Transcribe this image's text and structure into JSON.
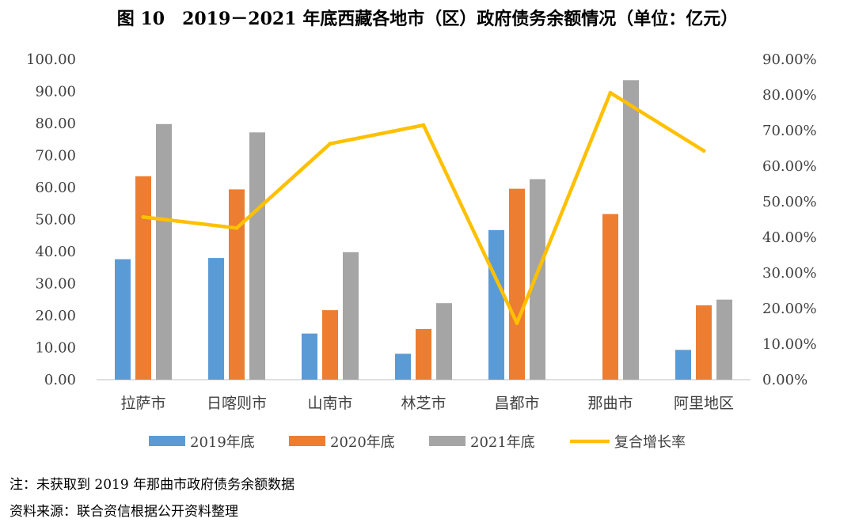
{
  "chart_data": {
    "type": "bar",
    "title": "图 10　2019－2021 年底西藏各地市（区）政府债务余额情况（单位：亿元）",
    "categories": [
      "拉萨市",
      "日喀则市",
      "山南市",
      "林芝市",
      "昌都市",
      "那曲市",
      "阿里地区"
    ],
    "series": [
      {
        "name": "2019年底",
        "kind": "bar",
        "axis": "left",
        "color": "#5B9BD5",
        "values": [
          37.6,
          38.0,
          14.4,
          8.1,
          46.7,
          null,
          9.3
        ]
      },
      {
        "name": "2020年底",
        "kind": "bar",
        "axis": "left",
        "color": "#ED7D31",
        "values": [
          63.5,
          59.4,
          21.7,
          15.8,
          59.6,
          51.7,
          23.2
        ]
      },
      {
        "name": "2021年底",
        "kind": "bar",
        "axis": "left",
        "color": "#A5A5A5",
        "values": [
          79.8,
          77.2,
          39.8,
          23.9,
          62.6,
          93.5,
          25.0
        ]
      },
      {
        "name": "复合增长率",
        "kind": "line",
        "axis": "right",
        "color": "#FFC000",
        "values": [
          45.7,
          42.6,
          66.3,
          71.5,
          15.9,
          80.6,
          64.3
        ]
      }
    ],
    "ylim_left": [
      0,
      100
    ],
    "yticks_left": [
      "0.00",
      "10.00",
      "20.00",
      "30.00",
      "40.00",
      "50.00",
      "60.00",
      "70.00",
      "80.00",
      "90.00",
      "100.00"
    ],
    "ylim_right": [
      0,
      90
    ],
    "yticks_right": [
      "0.00%",
      "10.00%",
      "20.00%",
      "30.00%",
      "40.00%",
      "50.00%",
      "60.00%",
      "70.00%",
      "80.00%",
      "90.00%"
    ],
    "grid": false,
    "legend_position": "bottom"
  },
  "notes": {
    "note": "注：未获取到 2019 年那曲市政府债务余额数据",
    "source": "资料来源：联合资信根据公开资料整理"
  }
}
